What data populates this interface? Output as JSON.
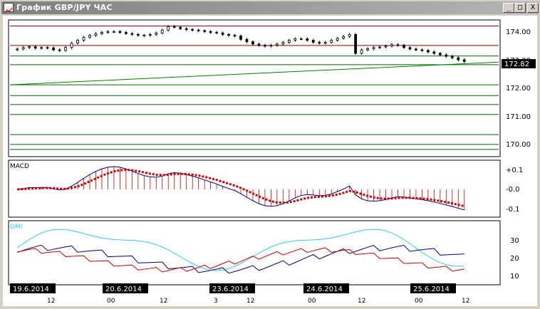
{
  "window": {
    "title": "График GBP/JPY ЧАС",
    "buttons": {
      "minimize": "_",
      "maximize": "□",
      "close": "X"
    }
  },
  "colors": {
    "candle": "#000000",
    "hline_red": "#8b0000",
    "hline_green": "#006400",
    "trend_green": "#008000",
    "macd_line": "#000080",
    "macd_signal": "#d00000",
    "macd_hist": "#d00000",
    "dmi_adx": "#33ccee",
    "dmi_plus": "#000080",
    "dmi_minus": "#cc0000",
    "price_tag_bg": "#000000",
    "date_tag_bg": "#000000"
  },
  "price_panel": {
    "current_price": "172.82",
    "y_ticks": [
      "174.00",
      "173.00",
      "172.00",
      "171.00",
      "170.00"
    ],
    "ylim": [
      169.6,
      174.2
    ],
    "red_levels": [
      174.04,
      173.37
    ],
    "green_levels": [
      173.01,
      172.71,
      172.02,
      171.65,
      171.34,
      171.0,
      170.31,
      169.97,
      169.8
    ]
  },
  "macd_panel": {
    "label": "MACD",
    "y_ticks": [
      "+0.1",
      "-0.0",
      "-0.1"
    ]
  },
  "dmi_panel": {
    "label": "DMI",
    "y_ticks": [
      "30",
      "20",
      "10"
    ]
  },
  "x_axis": {
    "dates": [
      "19.6.2014",
      "20.6.2014",
      "23.6.2014",
      "24.6.2014",
      "25.6.2014"
    ],
    "hour_labels": [
      "12",
      "00",
      "12",
      "3",
      "12",
      "00",
      "12",
      "00",
      "12"
    ]
  },
  "chart_data": {
    "type": "candlestick",
    "close": [
      173.25,
      173.3,
      173.33,
      173.28,
      173.3,
      173.29,
      173.22,
      173.2,
      173.3,
      173.45,
      173.55,
      173.65,
      173.72,
      173.78,
      173.82,
      173.85,
      173.85,
      173.82,
      173.78,
      173.75,
      173.72,
      173.72,
      173.75,
      173.8,
      173.9,
      174.02,
      174.0,
      173.95,
      173.92,
      173.9,
      173.88,
      173.85,
      173.82,
      173.8,
      173.75,
      173.72,
      173.7,
      173.58,
      173.5,
      173.42,
      173.38,
      173.35,
      173.38,
      173.42,
      173.48,
      173.55,
      173.6,
      173.6,
      173.55,
      173.48,
      173.45,
      173.48,
      173.55,
      173.62,
      173.68,
      173.75,
      173.1,
      173.22,
      173.26,
      173.3,
      173.32,
      173.35,
      173.4,
      173.38,
      173.3,
      173.25,
      173.22,
      173.2,
      173.15,
      173.1,
      173.05,
      173.0,
      172.95,
      172.88,
      172.82
    ]
  }
}
